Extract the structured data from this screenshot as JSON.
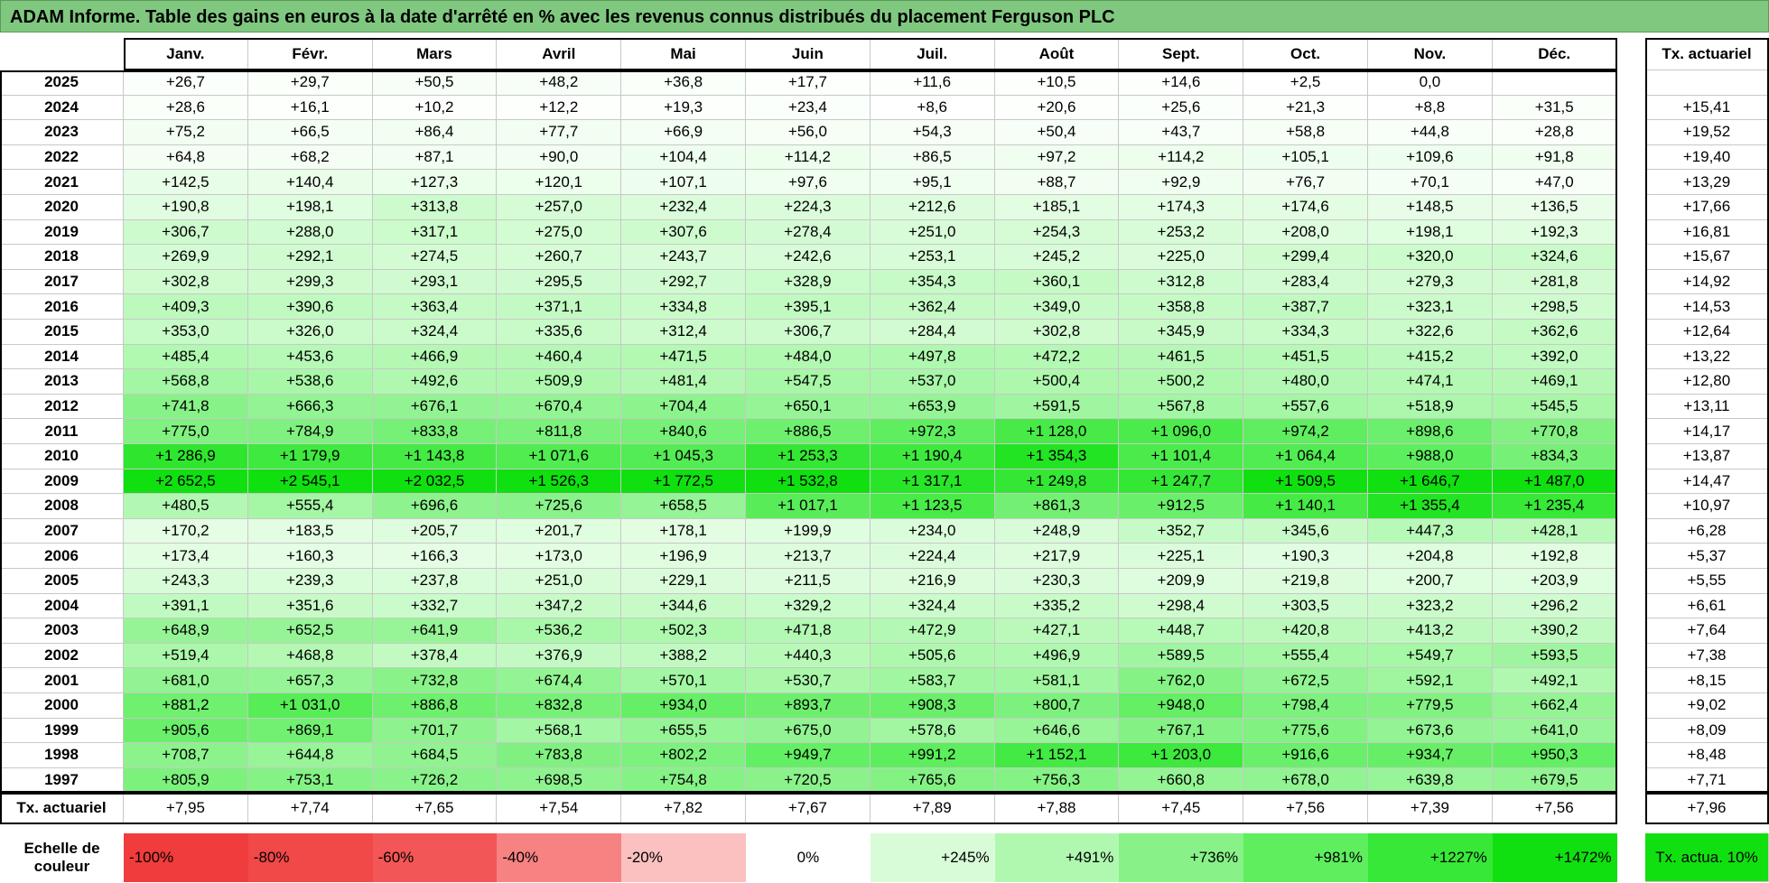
{
  "title": "ADAM Informe. Table des gains en euros à la date d'arrêté en % avec les revenus connus distribués du placement Ferguson PLC",
  "table": {
    "columns": [
      "Janv.",
      "Févr.",
      "Mars",
      "Avril",
      "Mai",
      "Juin",
      "Juil.",
      "Août",
      "Sept.",
      "Oct.",
      "Nov.",
      "Déc."
    ],
    "actuarial_header": "Tx. actuariel",
    "rows": [
      {
        "year": "2025",
        "values": [
          "+26,7",
          "+29,7",
          "+50,5",
          "+48,2",
          "+36,8",
          "+17,7",
          "+11,6",
          "+10,5",
          "+14,6",
          "+2,5",
          "0,0",
          null
        ],
        "actuarial": null
      },
      {
        "year": "2024",
        "values": [
          "+28,6",
          "+16,1",
          "+10,2",
          "+12,2",
          "+19,3",
          "+23,4",
          "+8,6",
          "+20,6",
          "+25,6",
          "+21,3",
          "+8,8",
          "+31,5"
        ],
        "actuarial": "+15,41"
      },
      {
        "year": "2023",
        "values": [
          "+75,2",
          "+66,5",
          "+86,4",
          "+77,7",
          "+66,9",
          "+56,0",
          "+54,3",
          "+50,4",
          "+43,7",
          "+58,8",
          "+44,8",
          "+28,8"
        ],
        "actuarial": "+19,52"
      },
      {
        "year": "2022",
        "values": [
          "+64,8",
          "+68,2",
          "+87,1",
          "+90,0",
          "+104,4",
          "+114,2",
          "+86,5",
          "+97,2",
          "+114,2",
          "+105,1",
          "+109,6",
          "+91,8"
        ],
        "actuarial": "+19,40"
      },
      {
        "year": "2021",
        "values": [
          "+142,5",
          "+140,4",
          "+127,3",
          "+120,1",
          "+107,1",
          "+97,6",
          "+95,1",
          "+88,7",
          "+92,9",
          "+76,7",
          "+70,1",
          "+47,0"
        ],
        "actuarial": "+13,29"
      },
      {
        "year": "2020",
        "values": [
          "+190,8",
          "+198,1",
          "+313,8",
          "+257,0",
          "+232,4",
          "+224,3",
          "+212,6",
          "+185,1",
          "+174,3",
          "+174,6",
          "+148,5",
          "+136,5"
        ],
        "actuarial": "+17,66"
      },
      {
        "year": "2019",
        "values": [
          "+306,7",
          "+288,0",
          "+317,1",
          "+275,0",
          "+307,6",
          "+278,4",
          "+251,0",
          "+254,3",
          "+253,2",
          "+208,0",
          "+198,1",
          "+192,3"
        ],
        "actuarial": "+16,81"
      },
      {
        "year": "2018",
        "values": [
          "+269,9",
          "+292,1",
          "+274,5",
          "+260,7",
          "+243,7",
          "+242,6",
          "+253,1",
          "+245,2",
          "+225,0",
          "+299,4",
          "+320,0",
          "+324,6"
        ],
        "actuarial": "+15,67"
      },
      {
        "year": "2017",
        "values": [
          "+302,8",
          "+299,3",
          "+293,1",
          "+295,5",
          "+292,7",
          "+328,9",
          "+354,3",
          "+360,1",
          "+312,8",
          "+283,4",
          "+279,3",
          "+281,8"
        ],
        "actuarial": "+14,92"
      },
      {
        "year": "2016",
        "values": [
          "+409,3",
          "+390,6",
          "+363,4",
          "+371,1",
          "+334,8",
          "+395,1",
          "+362,4",
          "+349,0",
          "+358,8",
          "+387,7",
          "+323,1",
          "+298,5"
        ],
        "actuarial": "+14,53"
      },
      {
        "year": "2015",
        "values": [
          "+353,0",
          "+326,0",
          "+324,4",
          "+335,6",
          "+312,4",
          "+306,7",
          "+284,4",
          "+302,8",
          "+345,9",
          "+334,3",
          "+322,6",
          "+362,6"
        ],
        "actuarial": "+12,64"
      },
      {
        "year": "2014",
        "values": [
          "+485,4",
          "+453,6",
          "+466,9",
          "+460,4",
          "+471,5",
          "+484,0",
          "+497,8",
          "+472,2",
          "+461,5",
          "+451,5",
          "+415,2",
          "+392,0"
        ],
        "actuarial": "+13,22"
      },
      {
        "year": "2013",
        "values": [
          "+568,8",
          "+538,6",
          "+492,6",
          "+509,9",
          "+481,4",
          "+547,5",
          "+537,0",
          "+500,4",
          "+500,2",
          "+480,0",
          "+474,1",
          "+469,1"
        ],
        "actuarial": "+12,80"
      },
      {
        "year": "2012",
        "values": [
          "+741,8",
          "+666,3",
          "+676,1",
          "+670,4",
          "+704,4",
          "+650,1",
          "+653,9",
          "+591,5",
          "+567,8",
          "+557,6",
          "+518,9",
          "+545,5"
        ],
        "actuarial": "+13,11"
      },
      {
        "year": "2011",
        "values": [
          "+775,0",
          "+784,9",
          "+833,8",
          "+811,8",
          "+840,6",
          "+886,5",
          "+972,3",
          "+1 128,0",
          "+1 096,0",
          "+974,2",
          "+898,6",
          "+770,8"
        ],
        "actuarial": "+14,17"
      },
      {
        "year": "2010",
        "values": [
          "+1 286,9",
          "+1 179,9",
          "+1 143,8",
          "+1 071,6",
          "+1 045,3",
          "+1 253,3",
          "+1 190,4",
          "+1 354,3",
          "+1 101,4",
          "+1 064,4",
          "+988,0",
          "+834,3"
        ],
        "actuarial": "+13,87"
      },
      {
        "year": "2009",
        "values": [
          "+2 652,5",
          "+2 545,1",
          "+2 032,5",
          "+1 526,3",
          "+1 772,5",
          "+1 532,8",
          "+1 317,1",
          "+1 249,8",
          "+1 247,7",
          "+1 509,5",
          "+1 646,7",
          "+1 487,0"
        ],
        "actuarial": "+14,47"
      },
      {
        "year": "2008",
        "values": [
          "+480,5",
          "+555,4",
          "+696,6",
          "+725,6",
          "+658,5",
          "+1 017,1",
          "+1 123,5",
          "+861,3",
          "+912,5",
          "+1 140,1",
          "+1 355,4",
          "+1 235,4"
        ],
        "actuarial": "+10,97"
      },
      {
        "year": "2007",
        "values": [
          "+170,2",
          "+183,5",
          "+205,7",
          "+201,7",
          "+178,1",
          "+199,9",
          "+234,0",
          "+248,9",
          "+352,7",
          "+345,6",
          "+447,3",
          "+428,1"
        ],
        "actuarial": "+6,28"
      },
      {
        "year": "2006",
        "values": [
          "+173,4",
          "+160,3",
          "+166,3",
          "+173,0",
          "+196,9",
          "+213,7",
          "+224,4",
          "+217,9",
          "+225,1",
          "+190,3",
          "+204,8",
          "+192,8"
        ],
        "actuarial": "+5,37"
      },
      {
        "year": "2005",
        "values": [
          "+243,3",
          "+239,3",
          "+237,8",
          "+251,0",
          "+229,1",
          "+211,5",
          "+216,9",
          "+230,3",
          "+209,9",
          "+219,8",
          "+200,7",
          "+203,9"
        ],
        "actuarial": "+5,55"
      },
      {
        "year": "2004",
        "values": [
          "+391,1",
          "+351,6",
          "+332,7",
          "+347,2",
          "+344,6",
          "+329,2",
          "+324,4",
          "+335,2",
          "+298,4",
          "+303,5",
          "+323,2",
          "+296,2"
        ],
        "actuarial": "+6,61"
      },
      {
        "year": "2003",
        "values": [
          "+648,9",
          "+652,5",
          "+641,9",
          "+536,2",
          "+502,3",
          "+471,8",
          "+472,9",
          "+427,1",
          "+448,7",
          "+420,8",
          "+413,2",
          "+390,2"
        ],
        "actuarial": "+7,64"
      },
      {
        "year": "2002",
        "values": [
          "+519,4",
          "+468,8",
          "+378,4",
          "+376,9",
          "+388,2",
          "+440,3",
          "+505,6",
          "+496,9",
          "+589,5",
          "+555,4",
          "+549,7",
          "+593,5"
        ],
        "actuarial": "+7,38"
      },
      {
        "year": "2001",
        "values": [
          "+681,0",
          "+657,3",
          "+732,8",
          "+674,4",
          "+570,1",
          "+530,7",
          "+583,7",
          "+581,1",
          "+762,0",
          "+672,5",
          "+592,1",
          "+492,1"
        ],
        "actuarial": "+8,15"
      },
      {
        "year": "2000",
        "values": [
          "+881,2",
          "+1 031,0",
          "+886,8",
          "+832,8",
          "+934,0",
          "+893,7",
          "+908,3",
          "+800,7",
          "+948,0",
          "+798,4",
          "+779,5",
          "+662,4"
        ],
        "actuarial": "+9,02"
      },
      {
        "year": "1999",
        "values": [
          "+905,6",
          "+869,1",
          "+701,7",
          "+568,1",
          "+655,5",
          "+675,0",
          "+578,6",
          "+646,6",
          "+767,1",
          "+775,6",
          "+673,6",
          "+641,0"
        ],
        "actuarial": "+8,09"
      },
      {
        "year": "1998",
        "values": [
          "+708,7",
          "+644,8",
          "+684,5",
          "+783,8",
          "+802,2",
          "+949,7",
          "+991,2",
          "+1 152,1",
          "+1 203,0",
          "+916,6",
          "+934,7",
          "+950,3"
        ],
        "actuarial": "+8,48"
      },
      {
        "year": "1997",
        "values": [
          "+805,9",
          "+753,1",
          "+726,2",
          "+698,5",
          "+754,8",
          "+720,5",
          "+765,6",
          "+756,3",
          "+660,8",
          "+678,0",
          "+639,8",
          "+679,5"
        ],
        "actuarial": "+7,71"
      }
    ],
    "footer": {
      "label": "Tx. actuariel",
      "values": [
        "+7,95",
        "+7,74",
        "+7,65",
        "+7,54",
        "+7,82",
        "+7,67",
        "+7,89",
        "+7,88",
        "+7,45",
        "+7,56",
        "+7,39",
        "+7,56"
      ],
      "actuarial": "+7,96"
    }
  },
  "color_scale": {
    "label": "Echelle de couleur",
    "stops": [
      {
        "value": -100,
        "label": "-100%",
        "color": "#f03c3c"
      },
      {
        "value": -80,
        "label": "-80%",
        "color": "#f14848"
      },
      {
        "value": -60,
        "label": "-60%",
        "color": "#f35656"
      },
      {
        "value": -40,
        "label": "-40%",
        "color": "#f68282"
      },
      {
        "value": -20,
        "label": "-20%",
        "color": "#fbc0c0"
      },
      {
        "value": 0,
        "label": "0%",
        "color": "#ffffff"
      },
      {
        "value": 245,
        "label": "+245%",
        "color": "#d8fcd8"
      },
      {
        "value": 491,
        "label": "+491%",
        "color": "#b0f8b0"
      },
      {
        "value": 736,
        "label": "+736%",
        "color": "#88f288"
      },
      {
        "value": 981,
        "label": "+981%",
        "color": "#5eee5e"
      },
      {
        "value": 1227,
        "label": "+1227%",
        "color": "#38e838"
      },
      {
        "value": 1472,
        "label": "+1472%",
        "color": "#10e010"
      }
    ],
    "actuarial_note": "Tx. actua. 10%",
    "actuarial_note_color": "#10e010"
  }
}
